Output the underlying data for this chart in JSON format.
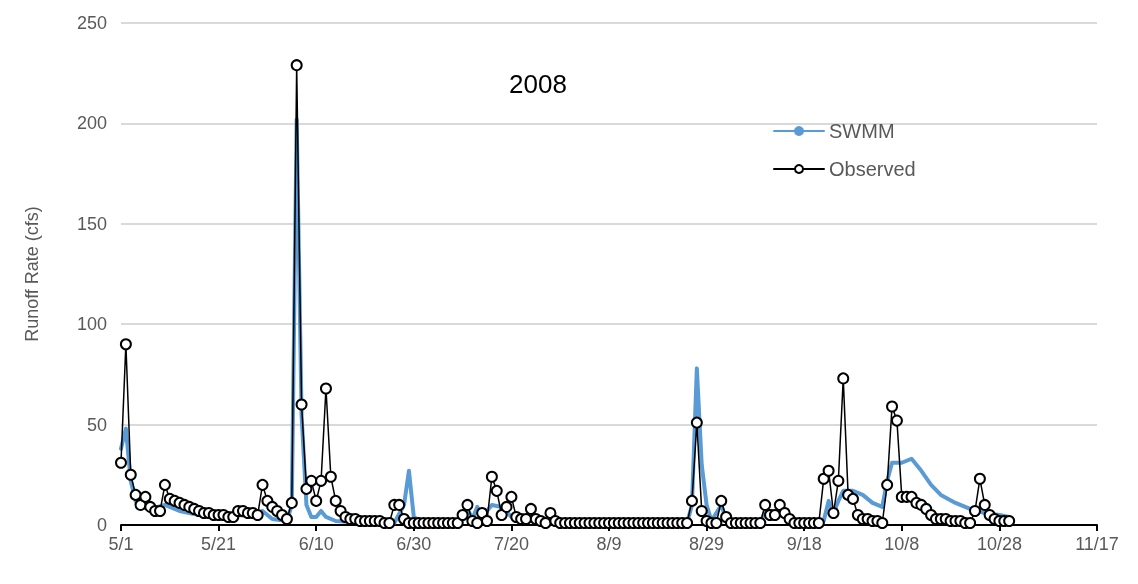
{
  "chart_data": {
    "type": "line",
    "title": "2008",
    "ylabel": "Runoff Rate (cfs)",
    "xlim": [
      "--05-01",
      "--11-17"
    ],
    "xticks": [
      {
        "value": "--05-01",
        "label": "5/1"
      },
      {
        "value": "--05-21",
        "label": "5/21"
      },
      {
        "value": "--06-10",
        "label": "6/10"
      },
      {
        "value": "--06-30",
        "label": "6/30"
      },
      {
        "value": "--07-20",
        "label": "7/20"
      },
      {
        "value": "--08-09",
        "label": "8/9"
      },
      {
        "value": "--08-29",
        "label": "8/29"
      },
      {
        "value": "--09-18",
        "label": "9/18"
      },
      {
        "value": "--10-08",
        "label": "10/8"
      },
      {
        "value": "--10-28",
        "label": "10/28"
      },
      {
        "value": "--11-17",
        "label": "11/17"
      }
    ],
    "ylim": [
      0,
      250
    ],
    "yticks": [
      0,
      50,
      100,
      150,
      200,
      250
    ],
    "grid": "y",
    "legend": "top right",
    "series": [
      {
        "name": "SWMM",
        "color": "#5b9bd5",
        "marker": "none",
        "line_style": "solid",
        "x": [
          "--05-01",
          "--05-02",
          "--05-03",
          "--05-04",
          "--05-05",
          "--05-07",
          "--05-10",
          "--05-13",
          "--05-17",
          "--05-21",
          "--05-24",
          "--05-25",
          "--05-29",
          "--05-30",
          "--06-01",
          "--06-04",
          "--06-05",
          "--06-06",
          "--06-07",
          "--06-08",
          "--06-09",
          "--06-10",
          "--06-11",
          "--06-12",
          "--06-14",
          "--06-20",
          "--06-26",
          "--06-28",
          "--06-29",
          "--06-30",
          "--07-02",
          "--07-09",
          "--07-11",
          "--07-12",
          "--07-13",
          "--07-14",
          "--07-16",
          "--07-18",
          "--07-20",
          "--07-22",
          "--07-24",
          "--07-26",
          "--07-30",
          "--08-25",
          "--08-26",
          "--08-27",
          "--08-28",
          "--08-29",
          "--08-30",
          "--09-01",
          "--09-02",
          "--09-04",
          "--09-09",
          "--09-10",
          "--09-12",
          "--09-14",
          "--09-16",
          "--09-21",
          "--09-22",
          "--09-23",
          "--09-24",
          "--09-25",
          "--09-26",
          "--09-28",
          "--09-30",
          "--10-02",
          "--10-04",
          "--10-05",
          "--10-06",
          "--10-08",
          "--10-10",
          "--10-12",
          "--10-14",
          "--10-16",
          "--10-19",
          "--10-22",
          "--10-25",
          "--10-28",
          "--10-30"
        ],
        "values": [
          38,
          48,
          22,
          12,
          9,
          8,
          10,
          7,
          5,
          4,
          3,
          5,
          4,
          7,
          3,
          2,
          10,
          202,
          55,
          10,
          4,
          4,
          7,
          4,
          2,
          1,
          1,
          10,
          27,
          4,
          1,
          1,
          8,
          3,
          9,
          4,
          10,
          9,
          4,
          3,
          5,
          2,
          1,
          1,
          10,
          78,
          30,
          10,
          2,
          10,
          3,
          1,
          1,
          7,
          7,
          6,
          2,
          1,
          2,
          12,
          6,
          12,
          17,
          17,
          15,
          11,
          9,
          22,
          31,
          31,
          33,
          27,
          20,
          15,
          11,
          8,
          6,
          5,
          4
        ]
      },
      {
        "name": "Observed",
        "color": "#000000",
        "marker": "circle",
        "line_style": "solid",
        "x": [
          "--05-01",
          "--05-02",
          "--05-03",
          "--05-04",
          "--05-05",
          "--05-06",
          "--05-07",
          "--05-08",
          "--05-09",
          "--05-10",
          "--05-11",
          "--05-12",
          "--05-13",
          "--05-14",
          "--05-15",
          "--05-16",
          "--05-17",
          "--05-18",
          "--05-19",
          "--05-20",
          "--05-21",
          "--05-22",
          "--05-23",
          "--05-24",
          "--05-25",
          "--05-26",
          "--05-27",
          "--05-28",
          "--05-29",
          "--05-30",
          "--05-31",
          "--06-01",
          "--06-02",
          "--06-03",
          "--06-04",
          "--06-05",
          "--06-06",
          "--06-07",
          "--06-08",
          "--06-09",
          "--06-10",
          "--06-11",
          "--06-12",
          "--06-13",
          "--06-14",
          "--06-15",
          "--06-16",
          "--06-17",
          "--06-18",
          "--06-19",
          "--06-20",
          "--06-21",
          "--06-22",
          "--06-23",
          "--06-24",
          "--06-25",
          "--06-26",
          "--06-27",
          "--06-28",
          "--06-29",
          "--06-30",
          "--07-01",
          "--07-02",
          "--07-03",
          "--07-04",
          "--07-05",
          "--07-06",
          "--07-07",
          "--07-08",
          "--07-09",
          "--07-10",
          "--07-11",
          "--07-12",
          "--07-13",
          "--07-14",
          "--07-15",
          "--07-16",
          "--07-17",
          "--07-18",
          "--07-19",
          "--07-20",
          "--07-21",
          "--07-22",
          "--07-23",
          "--07-24",
          "--07-25",
          "--07-26",
          "--07-27",
          "--07-28",
          "--07-29",
          "--07-30",
          "--07-31",
          "--08-01",
          "--08-02",
          "--08-03",
          "--08-04",
          "--08-05",
          "--08-06",
          "--08-07",
          "--08-08",
          "--08-09",
          "--08-10",
          "--08-11",
          "--08-12",
          "--08-13",
          "--08-14",
          "--08-15",
          "--08-16",
          "--08-17",
          "--08-18",
          "--08-19",
          "--08-20",
          "--08-21",
          "--08-22",
          "--08-23",
          "--08-24",
          "--08-25",
          "--08-26",
          "--08-27",
          "--08-28",
          "--08-29",
          "--08-30",
          "--08-31",
          "--09-01",
          "--09-02",
          "--09-03",
          "--09-04",
          "--09-05",
          "--09-06",
          "--09-07",
          "--09-08",
          "--09-09",
          "--09-10",
          "--09-11",
          "--09-12",
          "--09-13",
          "--09-14",
          "--09-15",
          "--09-16",
          "--09-17",
          "--09-18",
          "--09-19",
          "--09-20",
          "--09-21",
          "--09-22",
          "--09-23",
          "--09-24",
          "--09-25",
          "--09-26",
          "--09-27",
          "--09-28",
          "--09-29",
          "--09-30",
          "--10-01",
          "--10-02",
          "--10-03",
          "--10-04",
          "--10-05",
          "--10-06",
          "--10-07",
          "--10-08",
          "--10-09",
          "--10-10",
          "--10-11",
          "--10-12",
          "--10-13",
          "--10-14",
          "--10-15",
          "--10-16",
          "--10-17",
          "--10-18",
          "--10-19",
          "--10-20",
          "--10-21",
          "--10-22",
          "--10-23",
          "--10-24",
          "--10-25",
          "--10-26",
          "--10-27",
          "--10-28",
          "--10-29",
          "--10-30"
        ],
        "values": [
          31,
          90,
          25,
          15,
          10,
          14,
          9,
          7,
          7,
          20,
          13,
          12,
          11,
          10,
          9,
          8,
          7,
          6,
          6,
          5,
          5,
          5,
          4,
          4,
          7,
          7,
          6,
          6,
          5,
          20,
          12,
          9,
          7,
          5,
          3,
          11,
          229,
          60,
          18,
          22,
          12,
          22,
          68,
          24,
          12,
          7,
          4,
          3,
          3,
          2,
          2,
          2,
          2,
          2,
          1,
          1,
          10,
          10,
          3,
          1,
          1,
          1,
          1,
          1,
          1,
          1,
          1,
          1,
          1,
          1,
          5,
          10,
          2,
          1,
          6,
          2,
          24,
          17,
          5,
          9,
          14,
          4,
          3,
          3,
          8,
          3,
          2,
          1,
          6,
          2,
          1,
          1,
          1,
          1,
          1,
          1,
          1,
          1,
          1,
          1,
          1,
          1,
          1,
          1,
          1,
          1,
          1,
          1,
          1,
          1,
          1,
          1,
          1,
          1,
          1,
          1,
          1,
          12,
          51,
          7,
          2,
          1,
          1,
          12,
          4,
          1,
          1,
          1,
          1,
          1,
          1,
          1,
          10,
          5,
          5,
          10,
          6,
          3,
          1,
          1,
          1,
          1,
          1,
          1,
          23,
          27,
          6,
          22,
          73,
          15,
          13,
          5,
          3,
          3,
          2,
          2,
          1,
          20,
          59,
          52,
          14,
          14,
          14,
          11,
          10,
          8,
          5,
          3,
          3,
          3,
          2,
          2,
          2,
          1,
          1,
          7,
          23,
          10,
          5,
          3,
          2,
          2,
          2
        ]
      }
    ]
  }
}
